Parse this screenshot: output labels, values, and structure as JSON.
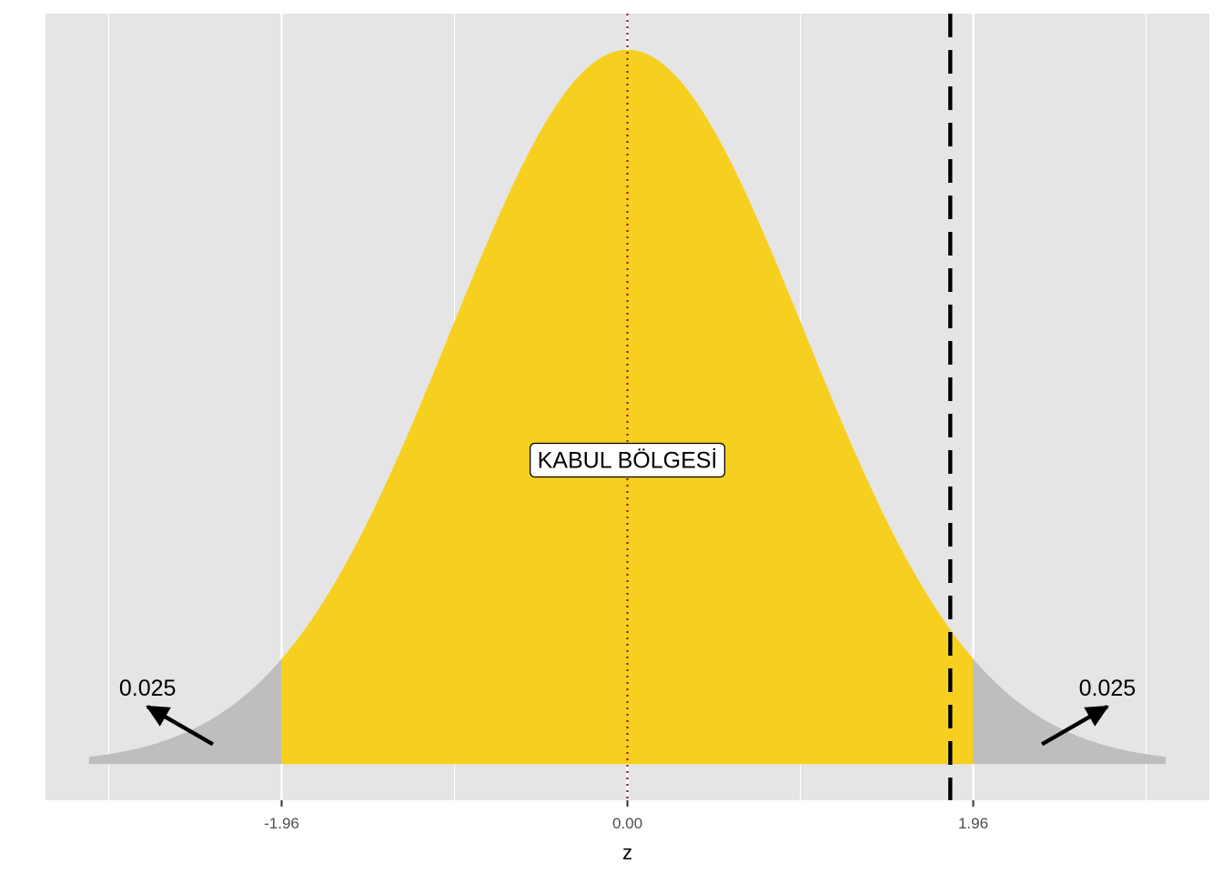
{
  "chart_data": {
    "type": "area",
    "title": "",
    "xlabel": "z",
    "ylabel": "",
    "xlim": [
      -3.05,
      3.05
    ],
    "curve": {
      "distribution": "standard-normal",
      "x_range": [
        -3.05,
        3.05
      ],
      "x_step": 0.02
    },
    "regions": [
      {
        "from": -3.05,
        "to": -1.96,
        "fill": "#bebebe"
      },
      {
        "from": -1.96,
        "to": 1.96,
        "fill": "#f7cf1e"
      },
      {
        "from": 1.96,
        "to": 3.05,
        "fill": "#bebebe"
      }
    ],
    "x_ticks": [
      {
        "value": -1.96,
        "label": "-1.96"
      },
      {
        "value": 0.0,
        "label": "0.00"
      },
      {
        "value": 1.96,
        "label": "1.96"
      }
    ],
    "x_minor_gridlines": [
      -2.94,
      -0.98,
      0.98,
      2.94
    ],
    "vlines": [
      {
        "x": 0.0,
        "style": "dotted",
        "color": "#8b1a1a"
      },
      {
        "x": 1.83,
        "style": "dashed",
        "color": "#000000"
      }
    ],
    "annotations": {
      "region_label": {
        "text": "KABUL BÖLGESİ",
        "x": 0.0,
        "y": 0.17
      },
      "left_tail": {
        "text": "0.025",
        "x": -2.72,
        "y": 0.038
      },
      "right_tail": {
        "text": "0.025",
        "x": 2.72,
        "y": 0.038
      }
    },
    "arrows": [
      {
        "from": [
          -2.35,
          0.011
        ],
        "to": [
          -2.72,
          0.032
        ]
      },
      {
        "from": [
          2.35,
          0.011
        ],
        "to": [
          2.72,
          0.032
        ]
      }
    ],
    "grid": true,
    "legend": "none",
    "colors": {
      "panel_background": "#e5e5e5",
      "gridline": "#ffffff",
      "acceptance": "#f7cf1e",
      "rejection": "#bebebe"
    }
  }
}
